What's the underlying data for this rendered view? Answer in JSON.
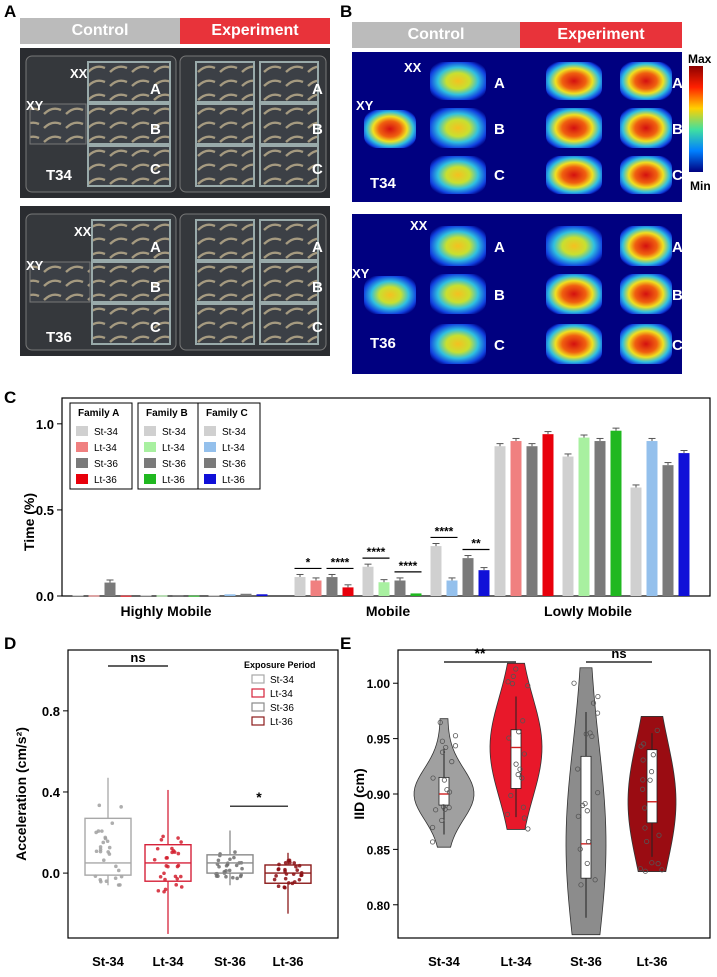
{
  "panels": {
    "A": "A",
    "B": "B",
    "C": "C",
    "D": "D",
    "E": "E"
  },
  "header": {
    "control": "Control",
    "experiment": "Experiment"
  },
  "photo_labels": {
    "xx": "XX",
    "xy": "XY",
    "a": "A",
    "b": "B",
    "c": "C",
    "t34": "T34",
    "t36": "T36"
  },
  "heat_scale": {
    "max": "Max",
    "min": "Min"
  },
  "colors": {
    "control_bar": "#b8b8b8",
    "experiment_bar": "#e8333a",
    "st34": "#d0d0d0",
    "lt34_a": "#f08080",
    "st36": "#7a7a7a",
    "lt36_a": "#e8000b",
    "lt34_b": "#a8f0a0",
    "lt36_b": "#20b820",
    "lt34_c": "#94c0ec",
    "lt36_c": "#1010d8"
  },
  "chart_data": [
    {
      "type": "bar",
      "ylabel": "Time (%)",
      "yticks": [
        "0.0",
        "0.5",
        "1.0"
      ],
      "ylim": [
        0,
        1.15
      ],
      "categories": [
        "Highly Mobile",
        "Mobile",
        "Lowly Mobile"
      ],
      "legend": [
        {
          "title": "Family A",
          "entries": [
            "St-34",
            "Lt-34",
            "St-36",
            "Lt-36"
          ]
        },
        {
          "title": "Family B",
          "entries": [
            "St-34",
            "Lt-34",
            "St-36",
            "Lt-36"
          ]
        },
        {
          "title": "Family C",
          "entries": [
            "St-34",
            "Lt-34",
            "St-36",
            "Lt-36"
          ]
        }
      ],
      "series": [
        {
          "name": "Family A St-34",
          "values": [
            0.005,
            0.11,
            0.87
          ]
        },
        {
          "name": "Family A Lt-34",
          "values": [
            0.003,
            0.09,
            0.9
          ]
        },
        {
          "name": "Family A St-36",
          "values": [
            0.078,
            0.11,
            0.87
          ]
        },
        {
          "name": "Family A Lt-36",
          "values": [
            0.002,
            0.05,
            0.94
          ]
        },
        {
          "name": "Family B St-34",
          "values": [
            0.005,
            0.17,
            0.81
          ]
        },
        {
          "name": "Family B Lt-34",
          "values": [
            0.003,
            0.08,
            0.92
          ]
        },
        {
          "name": "Family B St-36",
          "values": [
            0.005,
            0.09,
            0.9
          ]
        },
        {
          "name": "Family B Lt-36",
          "values": [
            0.002,
            0.015,
            0.96
          ]
        },
        {
          "name": "Family C St-34",
          "values": [
            0.005,
            0.29,
            0.63
          ]
        },
        {
          "name": "Family C Lt-34",
          "values": [
            0.01,
            0.09,
            0.9
          ]
        },
        {
          "name": "Family C St-36",
          "values": [
            0.013,
            0.22,
            0.76
          ]
        },
        {
          "name": "Family C Lt-36",
          "values": [
            0.01,
            0.15,
            0.83
          ]
        }
      ],
      "significance": [
        "*",
        "****",
        "****",
        "****",
        "****",
        "**"
      ]
    },
    {
      "type": "box",
      "ylabel": "Acceleration (cm/s²)",
      "categories": [
        "St-34",
        "Lt-34",
        "St-36",
        "Lt-36"
      ],
      "yticks": [
        "0.0",
        "0.4",
        "0.8"
      ],
      "ylim": [
        -0.32,
        1.1
      ],
      "legend_title": "Exposure Period",
      "legend": [
        "St-34",
        "Lt-34",
        "St-36",
        "Lt-36"
      ],
      "boxes": [
        {
          "name": "St-34",
          "min": -0.06,
          "q1": -0.01,
          "median": 0.05,
          "q3": 0.27,
          "max": 0.47
        },
        {
          "name": "Lt-34",
          "min": -0.3,
          "q1": -0.04,
          "median": 0.05,
          "q3": 0.14,
          "max": 0.41
        },
        {
          "name": "St-36",
          "min": -0.06,
          "q1": 0.0,
          "median": 0.05,
          "q3": 0.09,
          "max": 0.21
        },
        {
          "name": "Lt-36",
          "min": -0.2,
          "q1": -0.05,
          "median": 0.0,
          "q3": 0.04,
          "max": 0.1
        }
      ],
      "significance": [
        "ns",
        "*"
      ]
    },
    {
      "type": "violin",
      "ylabel": "IID (cm)",
      "categories": [
        "St-34",
        "Lt-34",
        "St-36",
        "Lt-36"
      ],
      "yticks": [
        "0.80",
        "0.85",
        "0.90",
        "0.95",
        "1.00"
      ],
      "ylim": [
        0.77,
        1.03
      ],
      "violins": [
        {
          "name": "St-34",
          "min": 0.852,
          "q1": 0.89,
          "median": 0.9,
          "q3": 0.915,
          "max": 0.968
        },
        {
          "name": "Lt-34",
          "min": 0.868,
          "q1": 0.905,
          "median": 0.942,
          "q3": 0.958,
          "max": 1.018
        },
        {
          "name": "St-36",
          "min": 0.773,
          "q1": 0.824,
          "median": 0.855,
          "q3": 0.934,
          "max": 1.014
        },
        {
          "name": "Lt-36",
          "min": 0.83,
          "q1": 0.874,
          "median": 0.893,
          "q3": 0.94,
          "max": 0.97
        }
      ],
      "significance": [
        "**",
        "ns"
      ]
    }
  ]
}
